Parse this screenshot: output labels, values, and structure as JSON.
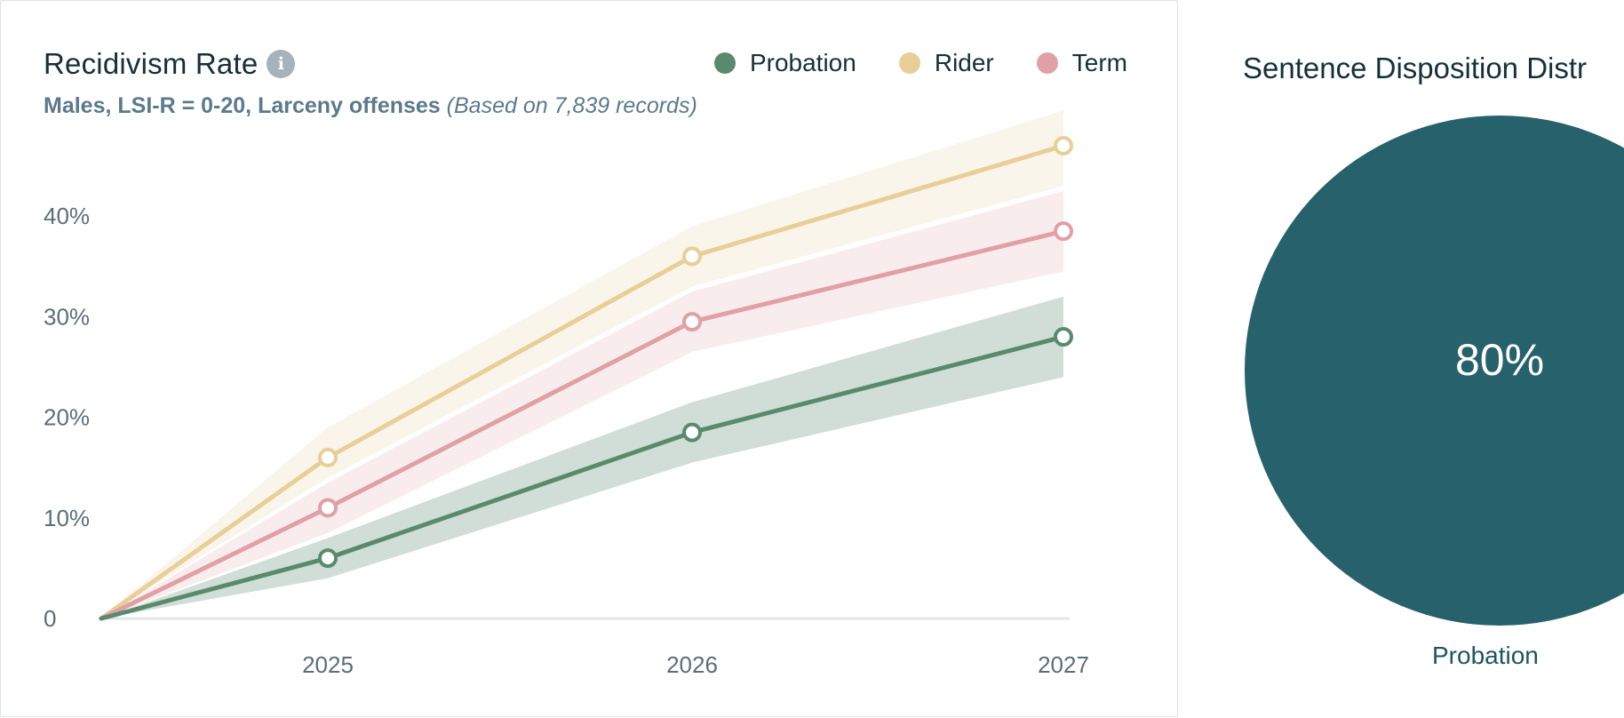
{
  "recidivism_card": {
    "title": "Recidivism Rate",
    "subtitle_bold": "Males, LSI-R = 0-20, Larceny offenses",
    "subtitle_italic": "(Based on 7,839 records)"
  },
  "disposition_card": {
    "title": "Sentence Disposition Distr",
    "slice_label": "80%",
    "category_label": "Probation"
  },
  "colors": {
    "probation": "#5a8a6e",
    "rider": "#e8cf98",
    "term": "#e0a0a6",
    "pie": "#27626c"
  },
  "chart_data": [
    {
      "type": "line",
      "title": "Recidivism Rate",
      "x": [
        "",
        "2025",
        "2026",
        "2027"
      ],
      "x_ticks": [
        "2025",
        "2026",
        "2027"
      ],
      "y_ticks": [
        "0",
        "10%",
        "20%",
        "30%",
        "40%"
      ],
      "ylim": [
        -1.5,
        50
      ],
      "legend_position": "top-right",
      "series": [
        {
          "name": "Probation",
          "key": "probation",
          "values": [
            0,
            6,
            18.5,
            28
          ],
          "lower": [
            0,
            4,
            15.5,
            24
          ],
          "upper": [
            0,
            8,
            21.5,
            32
          ]
        },
        {
          "name": "Rider",
          "key": "rider",
          "values": [
            0,
            16,
            36,
            47
          ],
          "lower": [
            0,
            14,
            33,
            43
          ],
          "upper": [
            0,
            19,
            39,
            50.5
          ]
        },
        {
          "name": "Term",
          "key": "term",
          "values": [
            0,
            11,
            29.5,
            38.5
          ],
          "lower": [
            0,
            8.5,
            26.5,
            34.5
          ],
          "upper": [
            0,
            13.5,
            32.5,
            42.5
          ]
        }
      ]
    },
    {
      "type": "pie",
      "title": "Sentence Disposition Distr",
      "categories": [
        "Probation"
      ],
      "values": [
        80
      ]
    }
  ]
}
